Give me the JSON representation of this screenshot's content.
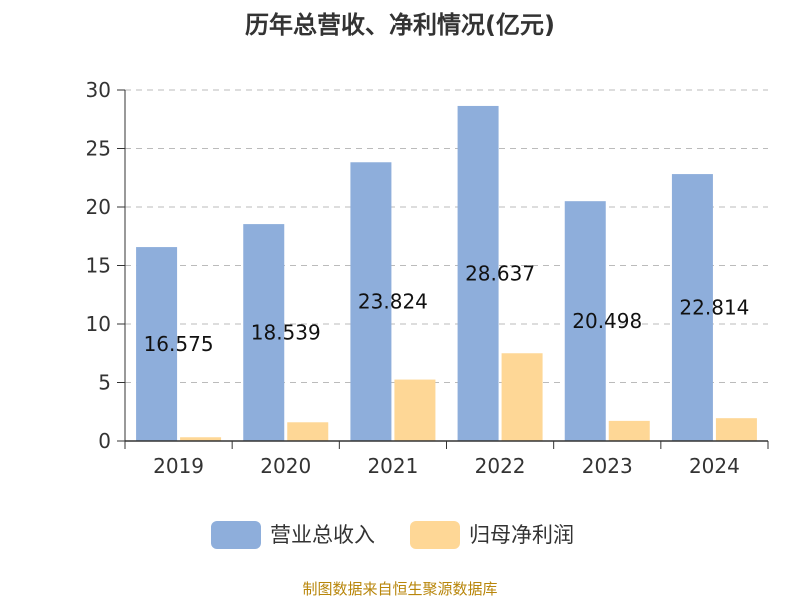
{
  "chart_data": {
    "type": "bar",
    "title": "历年总营收、净利情况(亿元)",
    "categories": [
      "2019",
      "2020",
      "2021",
      "2022",
      "2023",
      "2024"
    ],
    "series": [
      {
        "name": "营业总收入",
        "color": "#8eaedb",
        "values": [
          16.575,
          18.539,
          23.824,
          28.637,
          20.498,
          22.814
        ],
        "value_labels": [
          "16.575",
          "18.539",
          "23.824",
          "28.637",
          "20.498",
          "22.814"
        ]
      },
      {
        "name": "归母净利润",
        "color": "#fed796",
        "values": [
          0.32,
          1.6,
          5.25,
          7.5,
          1.72,
          1.95
        ]
      }
    ],
    "ylim": [
      0,
      30
    ],
    "yticks": [
      "0",
      "5",
      "10",
      "15",
      "20",
      "25",
      "30"
    ],
    "xlabel": "",
    "ylabel": "",
    "grid": "horizontal-dashed",
    "legend_position": "bottom"
  },
  "source_text": "制图数据来自恒生聚源数据库"
}
